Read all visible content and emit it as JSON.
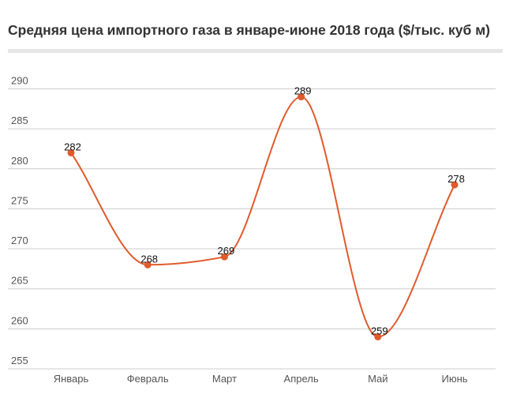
{
  "chart_data": {
    "type": "line",
    "title": "Средняя цена импортного газа в январе-июне 2018 года ($/тыс. куб м)",
    "categories": [
      "Январь",
      "Февраль",
      "Март",
      "Апрель",
      "Май",
      "Июнь"
    ],
    "series": [
      {
        "values": [
          282,
          268,
          269,
          289,
          259,
          278
        ]
      }
    ],
    "yticks": [
      255,
      260,
      265,
      270,
      275,
      280,
      285,
      290
    ],
    "ylim": [
      255,
      292
    ],
    "grid": true,
    "line_color": "#e05a2b",
    "grid_color": "#cccccc"
  }
}
